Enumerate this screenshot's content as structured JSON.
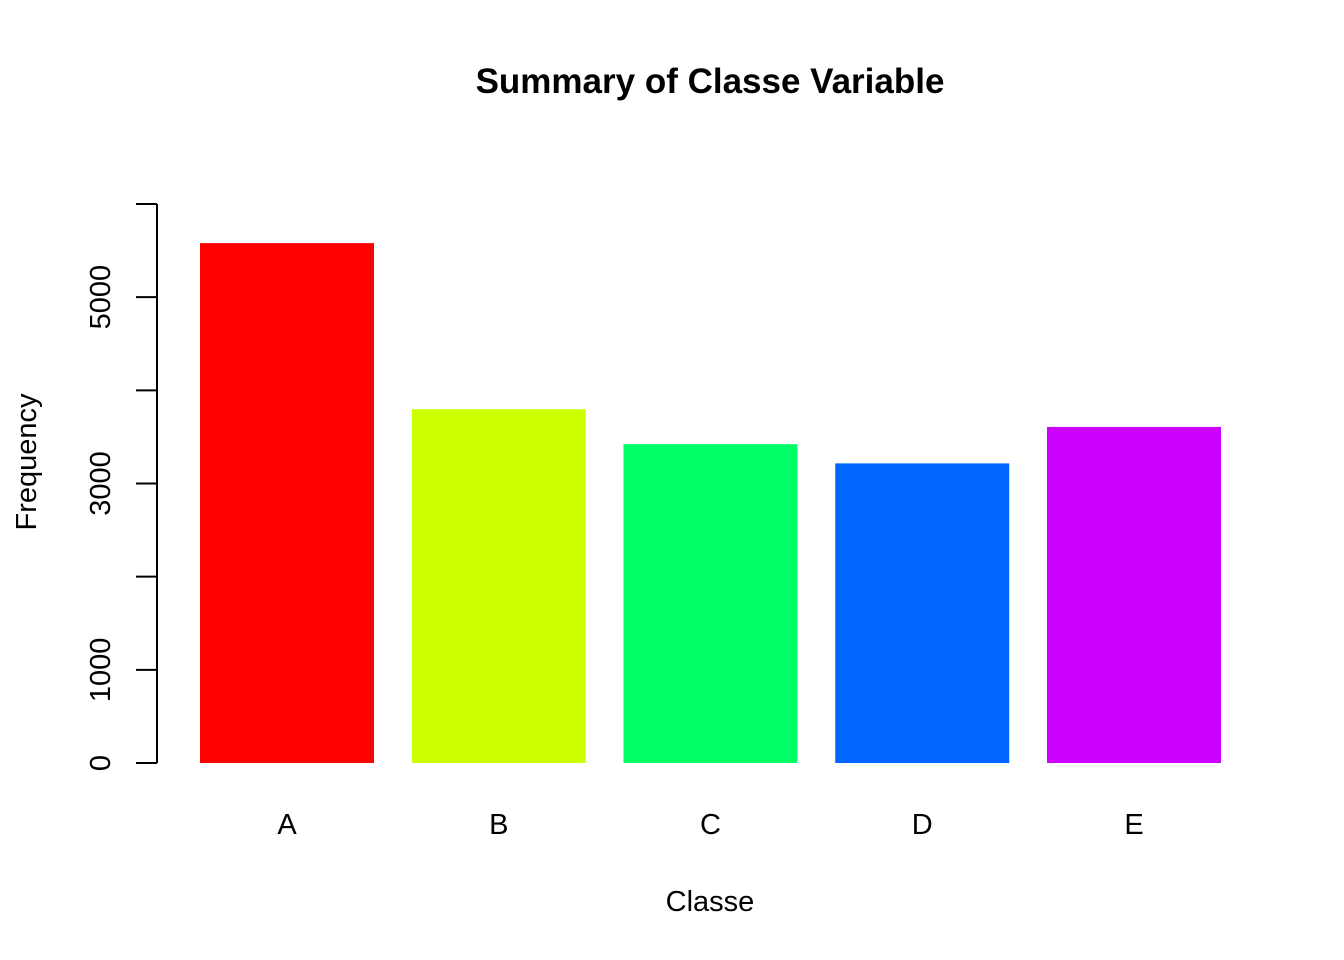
{
  "chart_data": {
    "type": "bar",
    "title": "Summary of Classe Variable",
    "xlabel": "Classe",
    "ylabel": "Frequency",
    "categories": [
      "A",
      "B",
      "C",
      "D",
      "E"
    ],
    "values": [
      5580,
      3797,
      3422,
      3216,
      3607
    ],
    "colors": [
      "#FF0000",
      "#CCFF00",
      "#00FF66",
      "#0066FF",
      "#CC00FF"
    ],
    "ylim": [
      0,
      6000
    ],
    "yticks": [
      0,
      1000,
      2000,
      3000,
      4000,
      5000,
      6000
    ],
    "ytick_labels": [
      "0",
      "1000",
      "",
      "3000",
      "",
      "5000",
      ""
    ],
    "grid": false,
    "legend": "none"
  }
}
